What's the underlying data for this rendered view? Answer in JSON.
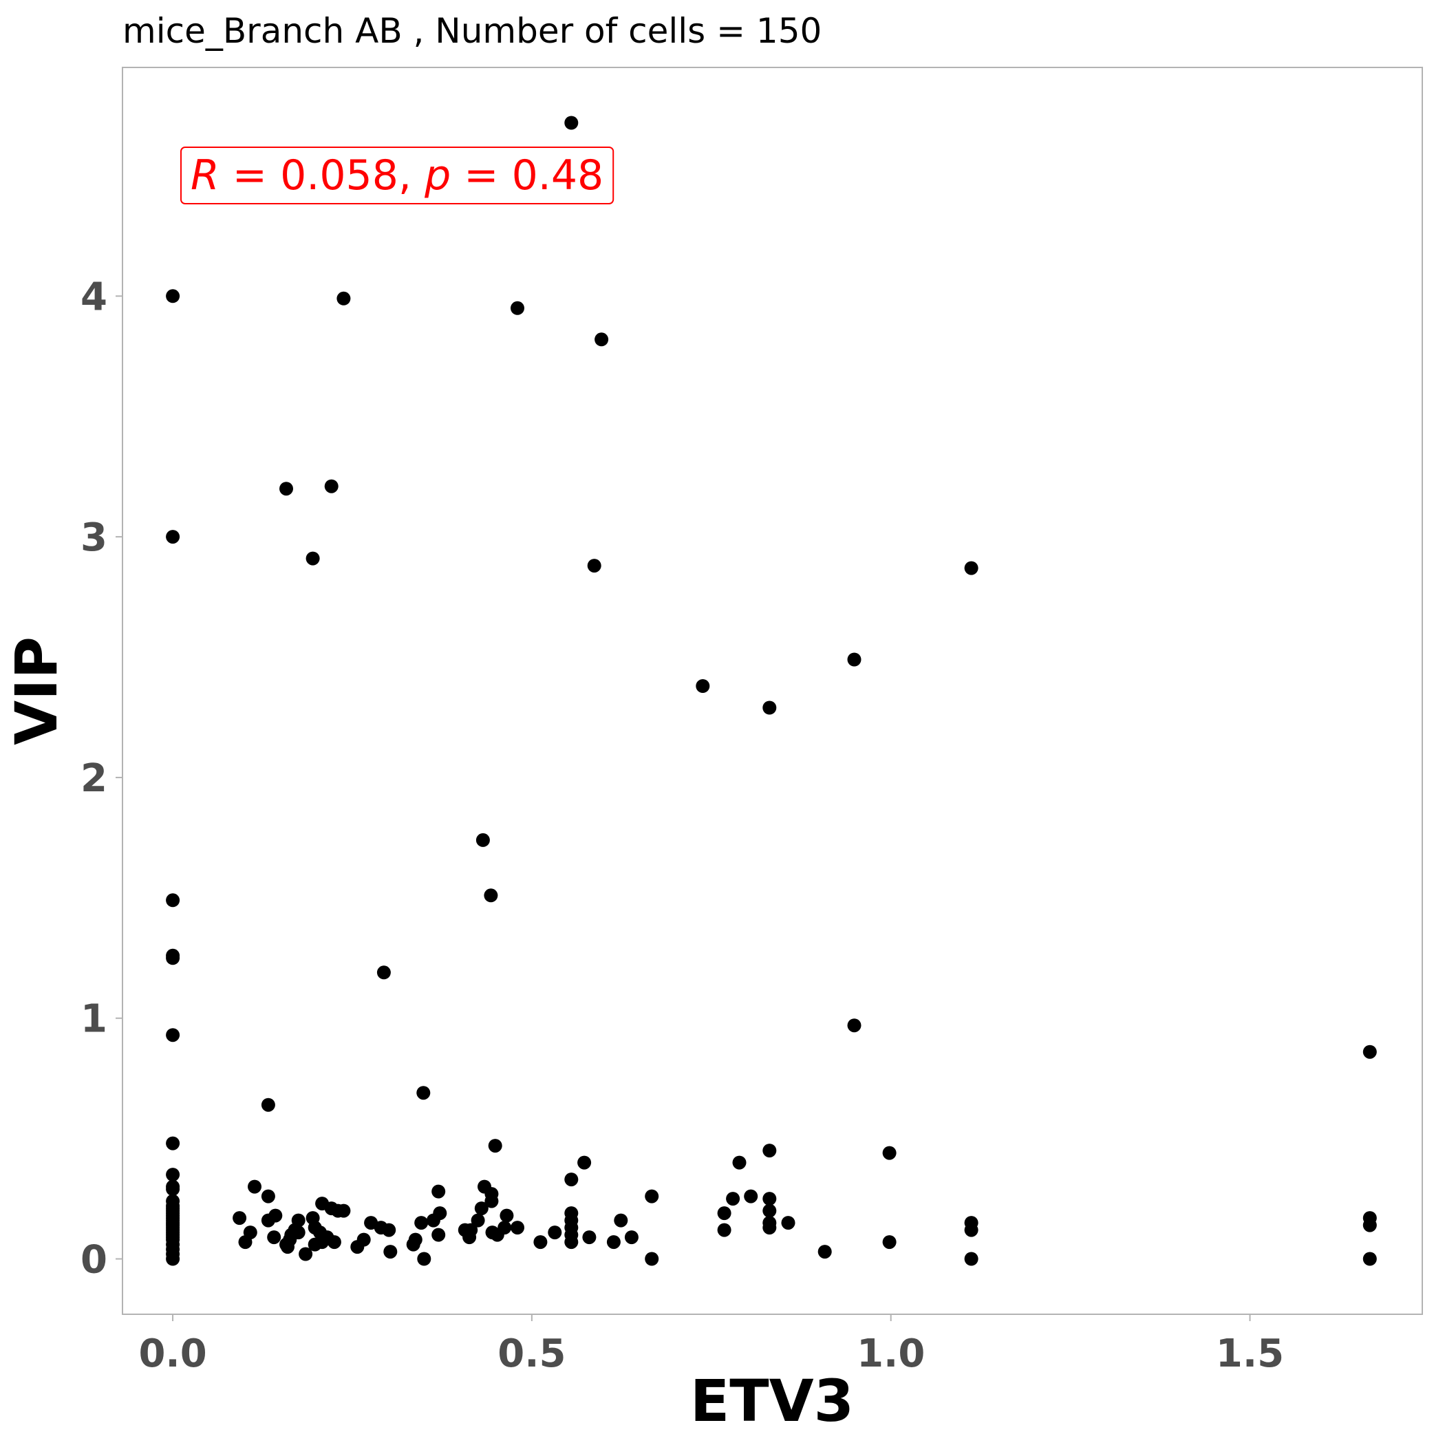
{
  "chart_data": {
    "type": "scatter",
    "title": "mice_Branch AB , Number of cells =  150",
    "xlabel": "ETV3",
    "ylabel": "VIP",
    "xlim": [
      -0.07,
      1.74
    ],
    "ylim": [
      -0.23,
      4.95
    ],
    "xticks": [
      0.0,
      0.5,
      1.0,
      1.5
    ],
    "xtick_labels": [
      "0.0",
      "0.5",
      "1.0",
      "1.5"
    ],
    "yticks": [
      0,
      1,
      2,
      3,
      4
    ],
    "ytick_labels": [
      "0",
      "1",
      "2",
      "3",
      "4"
    ],
    "grid": false,
    "point_color": "#000000",
    "annotation": {
      "r_label": "R",
      "r_value": "0.058",
      "p_label": "p",
      "p_value": "0.48",
      "color": "#ff0000"
    },
    "points": [
      [
        0,
        4.0
      ],
      [
        0,
        3.0
      ],
      [
        0,
        1.49
      ],
      [
        0,
        1.26
      ],
      [
        0,
        1.25
      ],
      [
        0,
        0.93
      ],
      [
        0,
        0.48
      ],
      [
        0,
        0.35
      ],
      [
        0,
        0.3
      ],
      [
        0,
        0.29
      ],
      [
        0,
        0.24
      ],
      [
        0,
        0.22
      ],
      [
        0,
        0.21
      ],
      [
        0,
        0.2
      ],
      [
        0,
        0.19
      ],
      [
        0,
        0.18
      ],
      [
        0,
        0.17
      ],
      [
        0,
        0.16
      ],
      [
        0,
        0.15
      ],
      [
        0,
        0.14
      ],
      [
        0,
        0.13
      ],
      [
        0,
        0.12
      ],
      [
        0,
        0.11
      ],
      [
        0,
        0.1
      ],
      [
        0,
        0.09
      ],
      [
        0,
        0.08
      ],
      [
        0,
        0.06
      ],
      [
        0,
        0.04
      ],
      [
        0,
        0.02
      ],
      [
        0,
        0.0
      ],
      [
        0.238,
        3.99
      ],
      [
        0.48,
        3.95
      ],
      [
        0.555,
        4.72
      ],
      [
        0.597,
        3.82
      ],
      [
        0.158,
        3.2
      ],
      [
        0.221,
        3.21
      ],
      [
        0.195,
        2.91
      ],
      [
        0.587,
        2.88
      ],
      [
        1.112,
        2.87
      ],
      [
        0.949,
        2.49
      ],
      [
        0.738,
        2.38
      ],
      [
        0.831,
        2.29
      ],
      [
        0.432,
        1.74
      ],
      [
        0.443,
        1.51
      ],
      [
        0.294,
        1.19
      ],
      [
        0.949,
        0.97
      ],
      [
        1.667,
        0.86
      ],
      [
        0.133,
        0.64
      ],
      [
        0.349,
        0.69
      ],
      [
        0.449,
        0.47
      ],
      [
        0.573,
        0.4
      ],
      [
        0.789,
        0.4
      ],
      [
        0.831,
        0.45
      ],
      [
        0.998,
        0.44
      ],
      [
        0.555,
        0.33
      ],
      [
        0.114,
        0.3
      ],
      [
        0.133,
        0.26
      ],
      [
        0.37,
        0.28
      ],
      [
        0.434,
        0.3
      ],
      [
        0.444,
        0.27
      ],
      [
        0.444,
        0.24
      ],
      [
        0.667,
        0.26
      ],
      [
        0.78,
        0.25
      ],
      [
        0.805,
        0.26
      ],
      [
        0.831,
        0.25
      ],
      [
        0.093,
        0.17
      ],
      [
        0.101,
        0.07
      ],
      [
        0.108,
        0.11
      ],
      [
        0.133,
        0.16
      ],
      [
        0.141,
        0.09
      ],
      [
        0.143,
        0.18
      ],
      [
        0.158,
        0.06
      ],
      [
        0.16,
        0.05
      ],
      [
        0.163,
        0.08
      ],
      [
        0.165,
        0.1
      ],
      [
        0.17,
        0.12
      ],
      [
        0.175,
        0.11
      ],
      [
        0.175,
        0.16
      ],
      [
        0.185,
        0.02
      ],
      [
        0.195,
        0.17
      ],
      [
        0.198,
        0.13
      ],
      [
        0.198,
        0.06
      ],
      [
        0.205,
        0.11
      ],
      [
        0.208,
        0.07
      ],
      [
        0.208,
        0.23
      ],
      [
        0.215,
        0.09
      ],
      [
        0.221,
        0.21
      ],
      [
        0.225,
        0.07
      ],
      [
        0.23,
        0.2
      ],
      [
        0.238,
        0.2
      ],
      [
        0.257,
        0.05
      ],
      [
        0.266,
        0.08
      ],
      [
        0.276,
        0.15
      ],
      [
        0.29,
        0.13
      ],
      [
        0.301,
        0.12
      ],
      [
        0.303,
        0.03
      ],
      [
        0.335,
        0.06
      ],
      [
        0.338,
        0.08
      ],
      [
        0.346,
        0.15
      ],
      [
        0.35,
        0.0
      ],
      [
        0.363,
        0.16
      ],
      [
        0.37,
        0.1
      ],
      [
        0.372,
        0.19
      ],
      [
        0.407,
        0.12
      ],
      [
        0.413,
        0.09
      ],
      [
        0.415,
        0.12
      ],
      [
        0.425,
        0.16
      ],
      [
        0.43,
        0.21
      ],
      [
        0.445,
        0.11
      ],
      [
        0.452,
        0.1
      ],
      [
        0.462,
        0.13
      ],
      [
        0.465,
        0.18
      ],
      [
        0.48,
        0.13
      ],
      [
        0.512,
        0.07
      ],
      [
        0.532,
        0.11
      ],
      [
        0.555,
        0.19
      ],
      [
        0.555,
        0.16
      ],
      [
        0.555,
        0.13
      ],
      [
        0.555,
        0.1
      ],
      [
        0.555,
        0.07
      ],
      [
        0.58,
        0.09
      ],
      [
        0.614,
        0.07
      ],
      [
        0.624,
        0.16
      ],
      [
        0.639,
        0.09
      ],
      [
        0.667,
        0.0
      ],
      [
        0.768,
        0.19
      ],
      [
        0.768,
        0.12
      ],
      [
        0.831,
        0.2
      ],
      [
        0.831,
        0.15
      ],
      [
        0.831,
        0.13
      ],
      [
        0.857,
        0.15
      ],
      [
        0.908,
        0.03
      ],
      [
        0.998,
        0.07
      ],
      [
        1.112,
        0.15
      ],
      [
        1.112,
        0.12
      ],
      [
        1.112,
        0.0
      ],
      [
        1.667,
        0.17
      ],
      [
        1.667,
        0.14
      ],
      [
        1.667,
        0.0
      ]
    ]
  }
}
